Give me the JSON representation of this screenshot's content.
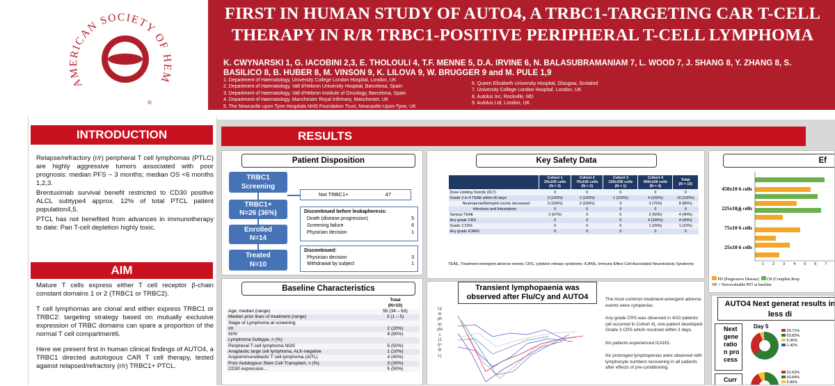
{
  "logo": {
    "text": "AMERICAN SOCIETY OF HEMATOLOGY",
    "mark": "®"
  },
  "title": {
    "line1": "FIRST IN HUMAN STUDY OF AUTO4, A TRBC1-TARGETING CAR T-CELL",
    "line2": "THERAPY IN R/R TRBC1-POSITIVE PERIPHERAL T-CELL LYMPHOMA"
  },
  "authors": "K. CWYNARSKI 1, G. IACOBINI 2,3, E. THOLOULI 4, T.F. MENNE 5, D.A. IRVINE 6, N. BALASUBRAMANIAM 7, L. WOOD 7, J. SHANG 8, Y. ZHANG 8, S. BASILICO 8, B. HUBER 8, M. VINSON 9, K. LILOVA 9, W. BRUGGER 9 and M. PULE 1,9",
  "affiliations_left": [
    "1. Department of Haematology, University College London Hospital, London, UK",
    "2. Department of Haematology, Vall d'Hebron University Hospital, Barcelona, Spain",
    "3. Department of Haematology, Vall d'Hebron Institute of Oncology, Barcelona, Spain",
    "4. Department of Haematology, Manchester Royal Infirmary, Manchester, UK",
    "5. The Newcastle upon Tyne Hospitals NHS Foundation Trust, Newcastle-Upon-Tyne, UK"
  ],
  "affiliations_right": [
    "6. Queen Elizabeth University Hospital, Glasgow, Scotalnd",
    "7. University College London Hospital, London, UK",
    "8. Autolus Inc, Rockville, MD",
    "9. Autolus Ltd, London, UK"
  ],
  "introduction": {
    "heading": "INTRODUCTION",
    "paragraphs": [
      "Relapse/refractory (r/r) peripheral T cell lymphomas (PTLC) are highly aggressive tumors associated with poor prognosis: median PFS ~ 3 months; median OS <6 months 1,2,3.",
      "Brentuximab survival benefit restricted to CD30 positive ALCL subtype4 approx. 12% of total PTCL patient population4,5.",
      "PTCL has not benefited from advances in immunotherapy to date: Pan T-cell depletion highly toxic."
    ]
  },
  "aim": {
    "heading": "AIM",
    "paragraphs": [
      "Mature T cells express either T cell receptor β-chain constant domains 1 or 2 (TRBC1 or TRBC2).",
      "T cell lymphomas are clonal and either express TRBC1 or TRBC2: targeting strategy based on mutually exclusive expression of TRBC domains can spare a proportion of the normal T cell compartment6.",
      "Here we present first in human clinical findings of AUTO4, a TRBC1 directed autologous CAR T cell therapy, tested against relapsed/refractory (r/r) TRBC1+ PTCL."
    ]
  },
  "results_heading": "RESULTS",
  "disposition": {
    "title": "Patient Disposition",
    "screening": {
      "label": "TRBC1 Screening",
      "n": "N=73"
    },
    "not_trbc1": {
      "label": "Not TRBC1+",
      "n": "47"
    },
    "trbc1pos": {
      "label": "TRBC1+",
      "n": "N=26 (36%)"
    },
    "enrolled": {
      "label": "Enrolled",
      "n": "N=14"
    },
    "treated": {
      "label": "Treated",
      "n": "N=10"
    },
    "disc_before": {
      "heading": "Discontinued before leukapheresis:",
      "items": [
        {
          "label": "Death (disease progression)",
          "n": "5"
        },
        {
          "label": "Screening failure",
          "n": "6"
        },
        {
          "label": "Physician decision",
          "n": "1"
        }
      ]
    },
    "disc": {
      "heading": "Discontinued:",
      "items": [
        {
          "label": "Physician decision",
          "n": "3"
        },
        {
          "label": "Withdrawal by subject",
          "n": "1"
        }
      ]
    }
  },
  "baseline": {
    "title": "Baseline Characteristics",
    "header": [
      "",
      "Total\n(N=10)"
    ],
    "rows": [
      [
        "Age, median (range)",
        "55 (34 – 63)"
      ],
      [
        "Median prior lines of treatment (range)",
        "3 (1 – 5)"
      ],
      [
        "Stage of Lymphoma at screening",
        ""
      ],
      [
        "I/II",
        "2 (20%)"
      ],
      [
        "III/IV",
        "8 (80%)"
      ],
      [
        "Lymphoma Subtype, n (%)",
        ""
      ],
      [
        "Peripheral T-cell lymphoma NOS",
        "5 (50%)"
      ],
      [
        "Anaplastic large cell lymphoma, ALK-negative",
        "1 (10%)"
      ],
      [
        "Angioimmunoblastic T cell lymphoma (AITL)",
        "4 (40%)"
      ],
      [
        "Prior Autologous Stem Cell Transplant, n (%)",
        "3 (30%)"
      ],
      [
        "CD30 expression...",
        "5 (50%)"
      ]
    ]
  },
  "safety": {
    "title": "Key Safety Data",
    "header": [
      "",
      "Cohort 1\n25x106 cells\n(N = 3)",
      "Cohort 2\n75x106 cells\n(N = 2)",
      "Cohort 3\n225x106 cells\n(N = 1)",
      "Cohort 4\n450x106 cells\n(N = 4)",
      "Total\n(N = 10)"
    ],
    "rows": [
      [
        "Dose Limiting Toxicity (DLT)",
        "0",
        "0",
        "0",
        "0",
        "0"
      ],
      [
        "Grade 3 or 4 TEAE within 60 days",
        "3 (100%)",
        "2 (100%)",
        "1 (100%)",
        "4 (100%)",
        "10 (100%)"
      ],
      [
        "Neutropenia/Netrophil counts decreased",
        "3 (100%)",
        "2 (100%)",
        "0",
        "3 (75%)",
        "8 (80%)"
      ],
      [
        "Infections and Infestations",
        "0",
        "0",
        "0",
        "0",
        "0"
      ],
      [
        "Serious TEAE",
        "2 (67%)",
        "0",
        "0",
        "2 (50%)",
        "4 (40%)"
      ],
      [
        "Any grade CRS",
        "0",
        "0",
        "0",
        "4 (100%)",
        "4 (40%)"
      ],
      [
        "Grade 3 CRS",
        "0",
        "0",
        "0",
        "1 (25%)",
        "1 (10%)"
      ],
      [
        "Any grade ICANS",
        "0",
        "0",
        "0",
        "0",
        "0"
      ]
    ],
    "footnote": "TEAE, Treatment-emergent adverse events; CRS, cytokine release syndrome; ICANS, Immune Effect Cell-Associated Neurotoxicity Syndrome"
  },
  "lymphopaenia": {
    "title": "Transient lymphopaenia was observed after Flu/Cy and AUTO4",
    "ylabel": "Lymphocytes (10^9/L)",
    "bullets": [
      "The most common treatment-emergent adverse events were cytopenias.",
      "Any grade CRS was observed in 4/10 patients (all occurred in Cohort 4), one patient developed Grade 3 CRS which resolved within 3 days.",
      "No patients experienced ICANS.",
      "No prolonged lymphopenias were observed with lymphocyte numbers recovering in all patients after effects of pre-conditioning."
    ]
  },
  "efficacy": {
    "title": "Ef",
    "rows": [
      "450x10 6 cells",
      "225x10 6 cells",
      "75x10 6 cells",
      "25x10 6 cells"
    ],
    "ticks": [
      "1",
      "2",
      "3",
      "4",
      "5",
      "6",
      "7"
    ],
    "legend_pd": "PD (Progressive Disease)",
    "legend_cr": "CR (Complete Resp",
    "ne_note": "NE = Non-evaluable PET at baseline",
    "ne_tag": "NE"
  },
  "next_gen": {
    "title": "AUTO4 Next generat results in less di",
    "side_text": "Next generation process",
    "side_text2": "Curr",
    "day": "Day 5",
    "legend1": [
      "29.71%",
      "63.82%",
      "5.05%",
      "1.42%"
    ],
    "legend2": [
      "31.62%",
      "59.84%",
      "6.80%"
    ]
  },
  "colors": {
    "brand_red": "#b11e2b",
    "section_red": "#c8111e",
    "flow_blue": "#4673b5",
    "table_navy": "#1f3864",
    "pd_orange": "#f4a62a",
    "cr_green": "#6ab04c"
  }
}
